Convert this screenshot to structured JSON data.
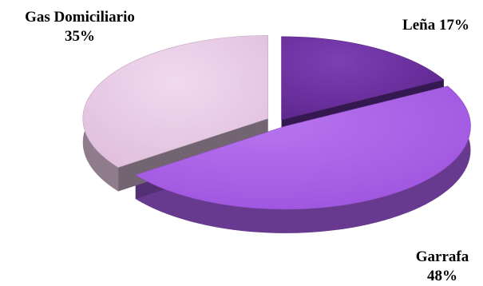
{
  "chart_data": {
    "type": "pie",
    "style": "3d-exploded",
    "slices": [
      {
        "name": "Leña",
        "value": 17,
        "label": "17%",
        "color": "#6b2fa0"
      },
      {
        "name": "Garrafa",
        "value": 48,
        "label": "48%",
        "color": "#a75de6"
      },
      {
        "name": "Gas Domiciliario",
        "value": 35,
        "label": "35%",
        "color": "#e6c8e3"
      }
    ],
    "labels": {
      "lena": {
        "text": "Leña 17%"
      },
      "garrafa": {
        "name": "Garrafa",
        "pct": "48%"
      },
      "gas": {
        "name": "Gas Domiciliario",
        "pct": "35%"
      }
    },
    "legend": "none"
  }
}
